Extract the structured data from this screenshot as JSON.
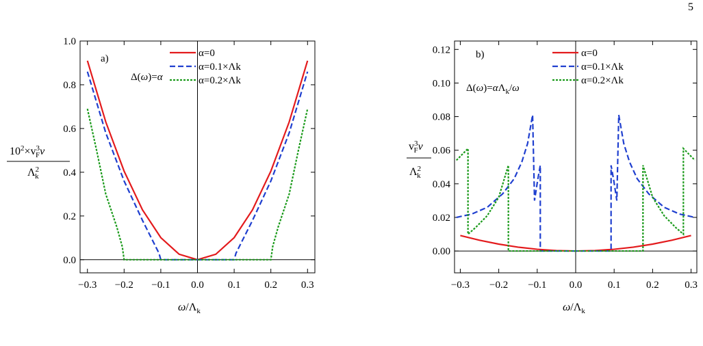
{
  "page_number": "5",
  "chart_data": [
    {
      "type": "line",
      "panel_label": "a)",
      "annotation": "Δ(ω)=α",
      "xlabel": "ω/Λk",
      "ylabel": "10²×vF³ν / Λk²",
      "xlim": [
        -0.32,
        0.32
      ],
      "ylim": [
        -0.06,
        1.0
      ],
      "xticks": [
        -0.3,
        -0.2,
        -0.1,
        0.0,
        0.1,
        0.2,
        0.3
      ],
      "xtick_labels": [
        "−0.3",
        "−0.2",
        "−0.1",
        "0.0",
        "0.1",
        "0.2",
        "0.3"
      ],
      "yticks": [
        0.0,
        0.2,
        0.4,
        0.6,
        0.8,
        1.0
      ],
      "ytick_labels": [
        "0.0",
        "0.2",
        "0.4",
        "0.6",
        "0.8",
        "1.0"
      ],
      "legend_position": "top-right",
      "series": [
        {
          "name": "α=0",
          "color": "#e31a1c",
          "dash": "solid",
          "x": [
            -0.3,
            -0.25,
            -0.2,
            -0.15,
            -0.1,
            -0.05,
            0.0,
            0.05,
            0.1,
            0.15,
            0.2,
            0.25,
            0.3
          ],
          "y": [
            0.91,
            0.63,
            0.405,
            0.228,
            0.101,
            0.025,
            0.0,
            0.025,
            0.101,
            0.228,
            0.405,
            0.63,
            0.91
          ]
        },
        {
          "name": "α=0.1×Λk",
          "color": "#1f3fcf",
          "dash": "dashed",
          "x": [
            -0.3,
            -0.25,
            -0.2,
            -0.15,
            -0.12,
            -0.105,
            -0.1,
            0.0,
            0.1,
            0.105,
            0.12,
            0.15,
            0.2,
            0.25,
            0.3
          ],
          "y": [
            0.86,
            0.58,
            0.36,
            0.18,
            0.08,
            0.03,
            0.0,
            0.0,
            0.0,
            0.03,
            0.08,
            0.18,
            0.36,
            0.58,
            0.86
          ]
        },
        {
          "name": "α=0.2×Λk",
          "color": "#1a9a1a",
          "dash": "dotted",
          "x": [
            -0.3,
            -0.275,
            -0.25,
            -0.22,
            -0.205,
            -0.2,
            0.0,
            0.2,
            0.205,
            0.22,
            0.25,
            0.275,
            0.3
          ],
          "y": [
            0.69,
            0.5,
            0.3,
            0.15,
            0.06,
            0.0,
            0.0,
            0.0,
            0.06,
            0.15,
            0.3,
            0.5,
            0.69
          ]
        }
      ]
    },
    {
      "type": "line",
      "panel_label": "b)",
      "annotation": "Δ(ω)=αΛk/ω",
      "xlabel": "ω/Λk",
      "ylabel": "vF³ν / Λk²",
      "xlim": [
        -0.315,
        0.315
      ],
      "ylim": [
        -0.013,
        0.125
      ],
      "xticks": [
        -0.3,
        -0.2,
        -0.1,
        0.0,
        0.1,
        0.2,
        0.3
      ],
      "xtick_labels": [
        "−0.3",
        "−0.2",
        "−0.1",
        "0.0",
        "0.1",
        "0.2",
        "0.3"
      ],
      "yticks": [
        0.0,
        0.02,
        0.04,
        0.06,
        0.08,
        0.1,
        0.12
      ],
      "ytick_labels": [
        "0.00",
        "0.02",
        "0.04",
        "0.06",
        "0.08",
        "0.10",
        "0.12"
      ],
      "legend_position": "top-right",
      "series": [
        {
          "name": "α=0",
          "color": "#e31a1c",
          "dash": "solid",
          "x": [
            -0.3,
            -0.25,
            -0.2,
            -0.15,
            -0.1,
            -0.05,
            0.0,
            0.05,
            0.1,
            0.15,
            0.2,
            0.25,
            0.3
          ],
          "y": [
            0.0092,
            0.0064,
            0.0041,
            0.0023,
            0.00103,
            0.00026,
            0.0,
            0.00026,
            0.00103,
            0.0023,
            0.0041,
            0.0064,
            0.0092
          ]
        },
        {
          "name": "α=0.1×Λk",
          "color": "#1f3fcf",
          "dash": "dashed",
          "x": [
            -0.31,
            -0.27,
            -0.23,
            -0.19,
            -0.16,
            -0.14,
            -0.125,
            -0.112,
            -0.107,
            -0.099,
            -0.092,
            -0.092,
            0.0,
            0.092,
            0.092,
            0.099,
            0.107,
            0.112,
            0.125,
            0.14,
            0.16,
            0.19,
            0.23,
            0.27,
            0.31
          ],
          "y": [
            0.02,
            0.022,
            0.026,
            0.034,
            0.043,
            0.053,
            0.064,
            0.081,
            0.03,
            0.042,
            0.051,
            0.0,
            0.0,
            0.0,
            0.051,
            0.042,
            0.03,
            0.081,
            0.064,
            0.053,
            0.043,
            0.034,
            0.026,
            0.022,
            0.02
          ]
        },
        {
          "name": "α=0.2×Λk",
          "color": "#1a9a1a",
          "dash": "dotted",
          "x": [
            -0.31,
            -0.28,
            -0.28,
            -0.26,
            -0.23,
            -0.2,
            -0.175,
            -0.175,
            0.0,
            0.175,
            0.175,
            0.2,
            0.23,
            0.26,
            0.28,
            0.28,
            0.31
          ],
          "y": [
            0.054,
            0.061,
            0.01,
            0.014,
            0.021,
            0.032,
            0.051,
            0.0,
            0.0,
            0.0,
            0.051,
            0.032,
            0.021,
            0.014,
            0.01,
            0.061,
            0.054
          ]
        }
      ]
    }
  ]
}
